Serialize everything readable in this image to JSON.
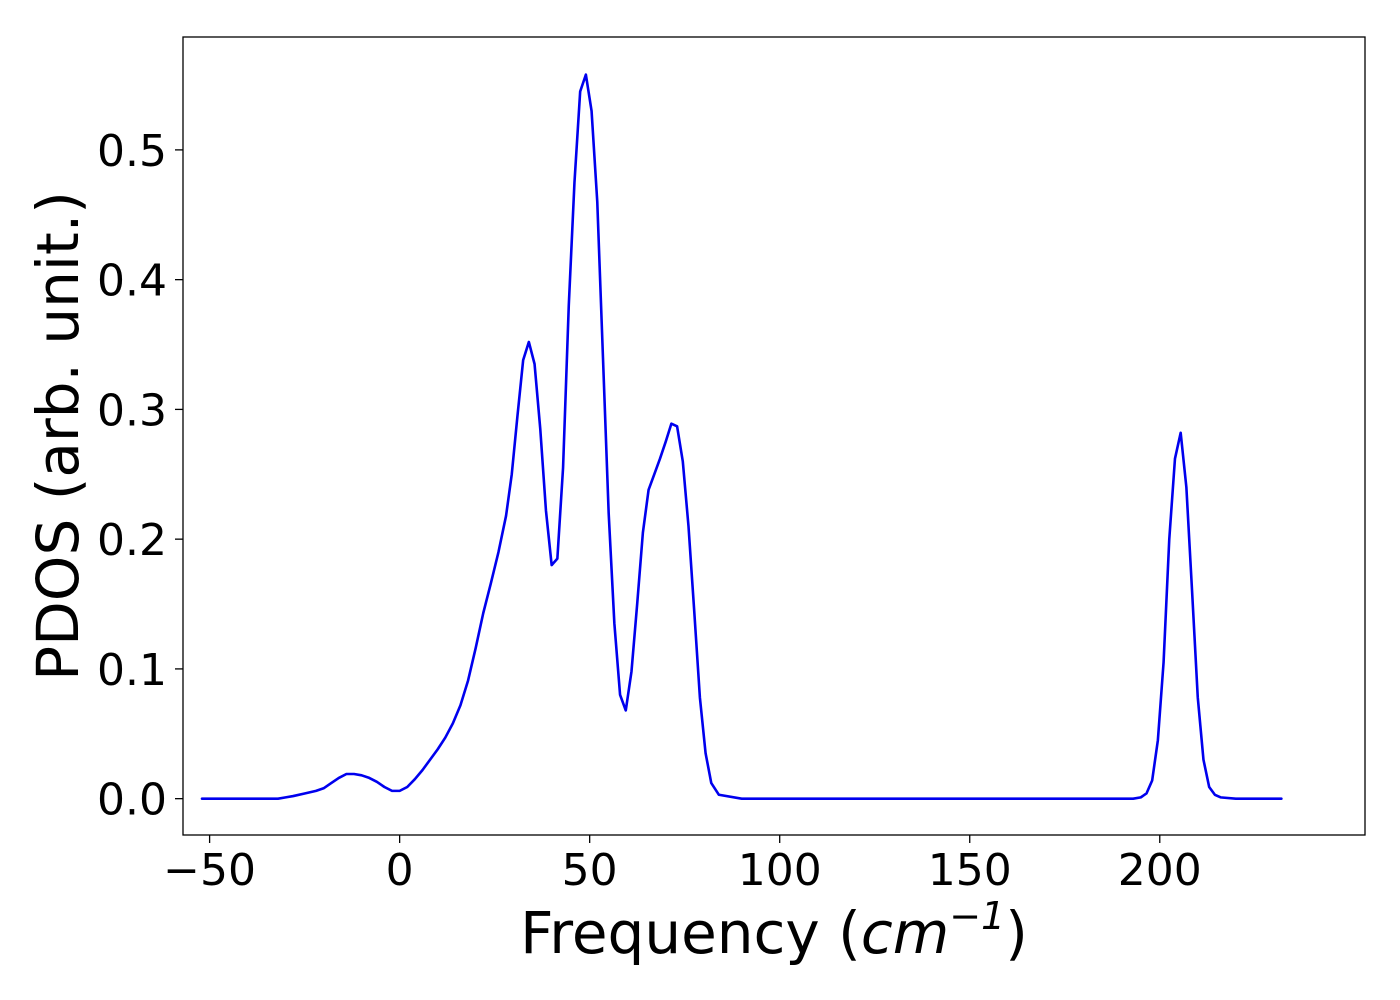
{
  "chart_data": {
    "type": "line",
    "title": "",
    "xlabel": "Frequency (cm^{-1})",
    "xlabel_parts": {
      "prefix": "Frequency (",
      "math": "cm",
      "exponent": "−1",
      "suffix": ")"
    },
    "ylabel": "PDOS (arb. unit.)",
    "xlim": [
      -57,
      254
    ],
    "ylim": [
      -0.028,
      0.587
    ],
    "x_ticks": [
      -50,
      0,
      50,
      100,
      150,
      200
    ],
    "x_tick_labels": [
      "−50",
      "0",
      "50",
      "100",
      "150",
      "200"
    ],
    "y_ticks": [
      0.0,
      0.1,
      0.2,
      0.3,
      0.4,
      0.5
    ],
    "y_tick_labels": [
      "0.0",
      "0.1",
      "0.2",
      "0.3",
      "0.4",
      "0.5"
    ],
    "grid": false,
    "legend": "none",
    "series": [
      {
        "color": "#0000ee",
        "x": [
          -52,
          -45,
          -38,
          -32,
          -30,
          -28,
          -25,
          -22,
          -20,
          -18,
          -16,
          -14,
          -12,
          -10,
          -8,
          -6,
          -4,
          -2,
          0,
          2,
          4,
          6,
          8,
          10,
          12,
          14,
          16,
          18,
          20,
          22,
          24,
          26,
          28,
          29.5,
          31,
          32.5,
          34,
          35.5,
          37,
          38.5,
          40,
          41.5,
          43,
          44.5,
          46,
          47.5,
          49,
          50.5,
          52,
          53.5,
          55,
          56.5,
          58,
          59.5,
          61,
          62.5,
          64,
          65.5,
          67,
          68.5,
          70,
          71.5,
          73,
          74.5,
          76,
          77.5,
          79,
          80.5,
          82,
          84,
          90,
          120,
          150,
          180,
          193,
          195,
          196.5,
          198,
          199.5,
          201,
          202.5,
          204,
          205.5,
          207,
          208.5,
          210,
          211.5,
          213,
          214.5,
          216,
          220,
          232
        ],
        "y": [
          0.0,
          0.0,
          0.0,
          0.0,
          0.001,
          0.002,
          0.004,
          0.006,
          0.008,
          0.012,
          0.016,
          0.019,
          0.019,
          0.018,
          0.016,
          0.013,
          0.009,
          0.006,
          0.006,
          0.009,
          0.015,
          0.022,
          0.03,
          0.038,
          0.047,
          0.058,
          0.072,
          0.091,
          0.116,
          0.143,
          0.166,
          0.19,
          0.218,
          0.25,
          0.295,
          0.338,
          0.352,
          0.335,
          0.285,
          0.222,
          0.18,
          0.185,
          0.255,
          0.38,
          0.475,
          0.545,
          0.558,
          0.53,
          0.46,
          0.34,
          0.22,
          0.135,
          0.08,
          0.068,
          0.098,
          0.15,
          0.205,
          0.238,
          0.25,
          0.262,
          0.275,
          0.289,
          0.287,
          0.26,
          0.21,
          0.145,
          0.078,
          0.035,
          0.012,
          0.003,
          0.0,
          0.0,
          0.0,
          0.0,
          0.0,
          0.001,
          0.004,
          0.014,
          0.045,
          0.105,
          0.2,
          0.262,
          0.282,
          0.24,
          0.16,
          0.078,
          0.03,
          0.009,
          0.003,
          0.001,
          0.0,
          0.0
        ]
      }
    ]
  }
}
